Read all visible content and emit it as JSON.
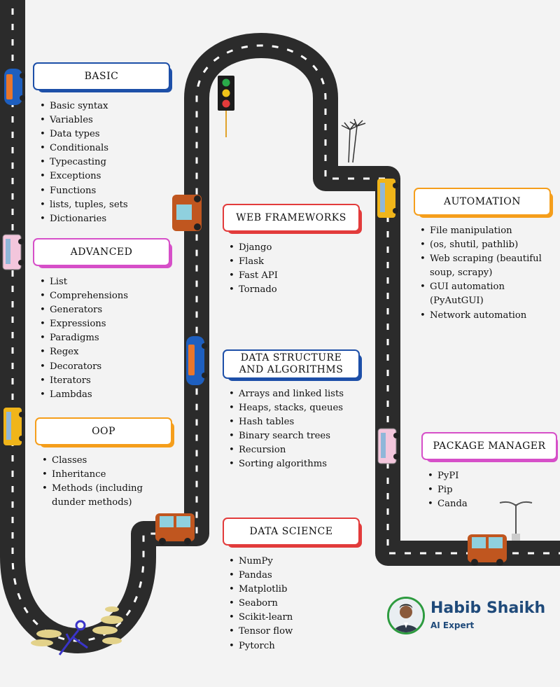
{
  "colors": {
    "road": "#2b2b2b",
    "basic": "#1d4fa8",
    "advanced": "#d64fc8",
    "oop": "#f59e1b",
    "web": "#e23b3b",
    "dsa": "#1d4fa8",
    "science": "#e23b3b",
    "automation": "#f59e1b",
    "package": "#d64fc8"
  },
  "sections": {
    "basic": {
      "title": "BASIC",
      "items": [
        "Basic syntax",
        "Variables",
        "Data types",
        "Conditionals",
        "Typecasting",
        "Exceptions",
        "Functions",
        "lists, tuples, sets",
        "Dictionaries"
      ]
    },
    "advanced": {
      "title": "ADVANCED",
      "items": [
        "List",
        "Comprehensions",
        "Generators",
        "Expressions",
        "Paradigms",
        "Regex",
        "Decorators",
        "Iterators",
        "Lambdas"
      ]
    },
    "oop": {
      "title": "OOP",
      "items": [
        "Classes",
        "Inheritance",
        "Methods (including",
        "dunder methods)"
      ]
    },
    "web": {
      "title": "WEB FRAMEWORKS",
      "items": [
        "Django",
        "Flask",
        "Fast API",
        "Tornado"
      ]
    },
    "dsa": {
      "title_line1": "DATA STRUCTURE",
      "title_line2": "AND ALGORITHMS",
      "items": [
        "Arrays and linked lists",
        "Heaps, stacks, queues",
        "Hash tables",
        "Binary search trees",
        "Recursion",
        "Sorting algorithms"
      ]
    },
    "science": {
      "title": "DATA SCIENCE",
      "items": [
        "NumPy",
        "Pandas",
        "Matplotlib",
        "Seaborn",
        "Scikit-learn",
        "Tensor flow",
        "Pytorch"
      ]
    },
    "automation": {
      "title": "AUTOMATION",
      "items": [
        "File manipulation",
        "(os, shutil, pathlib)",
        "Web scraping (beautiful",
        "soup, scrapy)",
        "GUI automation",
        "(PyAutGUI)",
        "Network automation"
      ]
    },
    "package": {
      "title": "PACKAGE MANAGER",
      "items": [
        "PyPI",
        "Pip",
        "Canda"
      ]
    }
  },
  "author": {
    "name": "Habib Shaikh",
    "role": "AI Expert"
  }
}
